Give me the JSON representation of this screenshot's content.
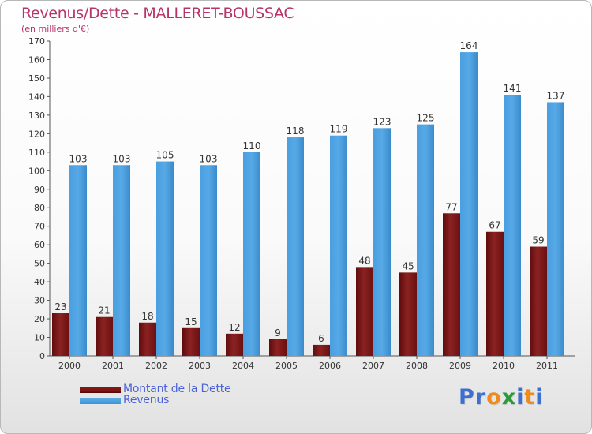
{
  "title": "Revenus/Dette - MALLERET-BOUSSAC",
  "subtitle": "(en milliers d'€)",
  "legend": {
    "dette": {
      "label": "Montant de la Dette",
      "color": "#7a1313"
    },
    "revenus": {
      "label": "Revenus",
      "color": "#3d95d8"
    }
  },
  "logo": {
    "text": "Proxiti",
    "letters": [
      {
        "ch": "P",
        "color": "#3c6fd0"
      },
      {
        "ch": "r",
        "color": "#3c6fd0"
      },
      {
        "ch": "o",
        "color": "#f08a1d"
      },
      {
        "ch": "x",
        "color": "#2a9a3a"
      },
      {
        "ch": "i",
        "color": "#3c6fd0"
      },
      {
        "ch": "t",
        "color": "#f08a1d"
      },
      {
        "ch": "i",
        "color": "#3c6fd0"
      }
    ]
  },
  "chart_data": {
    "type": "bar",
    "categories": [
      "2000",
      "2001",
      "2002",
      "2003",
      "2004",
      "2005",
      "2006",
      "2007",
      "2008",
      "2009",
      "2010",
      "2011"
    ],
    "series": [
      {
        "name": "Montant de la Dette",
        "values": [
          23,
          21,
          18,
          15,
          12,
          9,
          6,
          48,
          45,
          77,
          67,
          59
        ],
        "color": "#7a1313"
      },
      {
        "name": "Revenus",
        "values": [
          103,
          103,
          105,
          103,
          110,
          118,
          119,
          123,
          125,
          164,
          141,
          137
        ],
        "color": "#3d95d8"
      }
    ],
    "ylim": [
      0,
      170
    ],
    "yticks": [
      0,
      10,
      20,
      30,
      40,
      50,
      60,
      70,
      80,
      90,
      100,
      110,
      120,
      130,
      140,
      150,
      160,
      170
    ],
    "grid": false,
    "legend_position": "bottom-left"
  }
}
